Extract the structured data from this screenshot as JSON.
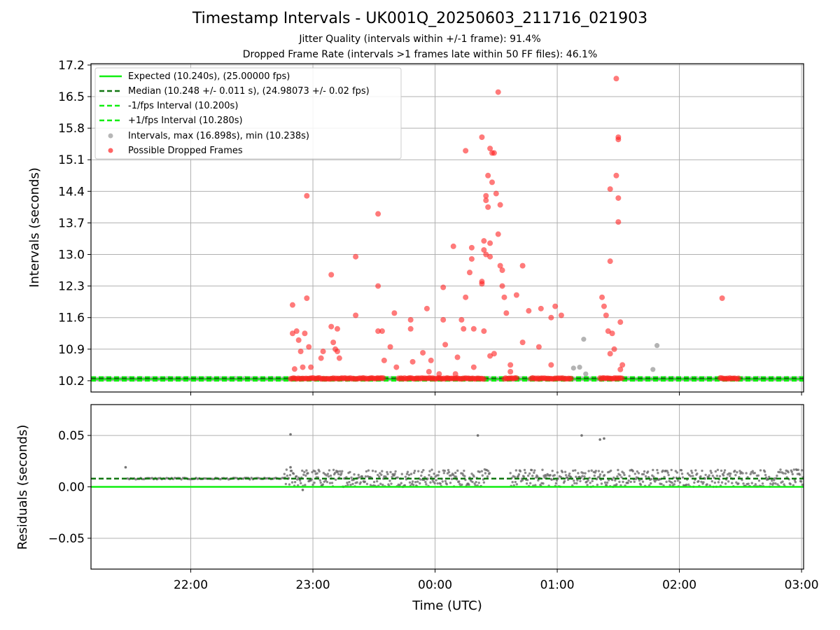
{
  "title": "Timestamp Intervals - UK001Q_20250603_211716_021903",
  "subtitle1": "Jitter Quality (intervals within +/-1 frame): 91.4%",
  "subtitle2": "Dropped Frame Rate (intervals >1 frames late within 50 FF files): 46.1%",
  "colors": {
    "expected": "#11ee11",
    "median": "#117711",
    "intervals": "#999999",
    "dropped": "#ff2222",
    "residual": "#666666"
  },
  "chart_data": [
    {
      "type": "scatter",
      "panel": "intervals",
      "ylabel": "Intervals (seconds)",
      "xlim": [
        "21:11",
        "03:01"
      ],
      "ylim": [
        9.95,
        17.23
      ],
      "y_ticks": [
        "10.2",
        "10.9",
        "11.6",
        "12.3",
        "13.0",
        "13.7",
        "14.4",
        "15.1",
        "15.8",
        "16.5",
        "17.2"
      ],
      "grid": true,
      "legend_position": "upper left",
      "legend": [
        "Expected (10.240s), (25.00000 fps)",
        "Median (10.248 +/- 0.011 s), (24.98073 +/- 0.02 fps)",
        "-1/fps Interval (10.200s)",
        "+1/fps Interval (10.280s)",
        "Intervals, max (16.898s), min (10.238s)",
        "Possible Dropped Frames"
      ],
      "lines": {
        "expected": 10.24,
        "median": 10.248,
        "minus_1_fps": 10.2,
        "plus_1_fps": 10.28
      },
      "intervals_x": [
        "21:11",
        "03:01"
      ],
      "intervals_typical": 10.245,
      "intervals_outliers": [
        {
          "x": "01:08",
          "y": 10.48
        },
        {
          "x": "01:11",
          "y": 10.5
        },
        {
          "x": "01:13",
          "y": 11.12
        },
        {
          "x": "01:14",
          "y": 10.35
        },
        {
          "x": "01:47",
          "y": 10.45
        },
        {
          "x": "01:49",
          "y": 10.98
        }
      ],
      "dropped_baseline": [
        {
          "from": "22:49",
          "to": "23:35",
          "y": 10.25
        },
        {
          "from": "23:42",
          "to": "00:24",
          "y": 10.25
        },
        {
          "from": "00:34",
          "to": "00:40",
          "y": 10.25
        },
        {
          "from": "00:47",
          "to": "01:07",
          "y": 10.25
        },
        {
          "from": "01:21",
          "to": "01:32",
          "y": 10.25
        },
        {
          "from": "02:20",
          "to": "02:29",
          "y": 10.25
        }
      ],
      "dropped_frames": [
        {
          "x": "22:50",
          "y": 11.88
        },
        {
          "x": "22:50",
          "y": 11.25
        },
        {
          "x": "22:51",
          "y": 10.46
        },
        {
          "x": "22:52",
          "y": 11.3
        },
        {
          "x": "22:53",
          "y": 11.1
        },
        {
          "x": "22:54",
          "y": 10.85
        },
        {
          "x": "22:55",
          "y": 10.5
        },
        {
          "x": "22:56",
          "y": 11.25
        },
        {
          "x": "22:57",
          "y": 12.03
        },
        {
          "x": "22:57",
          "y": 14.3
        },
        {
          "x": "22:58",
          "y": 10.95
        },
        {
          "x": "22:59",
          "y": 10.5
        },
        {
          "x": "23:04",
          "y": 10.7
        },
        {
          "x": "23:05",
          "y": 10.85
        },
        {
          "x": "23:09",
          "y": 12.55
        },
        {
          "x": "23:09",
          "y": 11.4
        },
        {
          "x": "23:10",
          "y": 11.05
        },
        {
          "x": "23:11",
          "y": 10.9
        },
        {
          "x": "23:12",
          "y": 10.85
        },
        {
          "x": "23:12",
          "y": 11.35
        },
        {
          "x": "23:13",
          "y": 10.7
        },
        {
          "x": "23:21",
          "y": 12.95
        },
        {
          "x": "23:21",
          "y": 11.65
        },
        {
          "x": "23:32",
          "y": 13.9
        },
        {
          "x": "23:32",
          "y": 12.3
        },
        {
          "x": "23:32",
          "y": 11.3
        },
        {
          "x": "23:34",
          "y": 11.3
        },
        {
          "x": "23:35",
          "y": 10.65
        },
        {
          "x": "23:38",
          "y": 10.95
        },
        {
          "x": "23:40",
          "y": 11.7
        },
        {
          "x": "23:41",
          "y": 10.5
        },
        {
          "x": "23:48",
          "y": 11.55
        },
        {
          "x": "23:48",
          "y": 11.35
        },
        {
          "x": "23:49",
          "y": 10.62
        },
        {
          "x": "23:54",
          "y": 10.82
        },
        {
          "x": "23:56",
          "y": 11.8
        },
        {
          "x": "23:57",
          "y": 10.4
        },
        {
          "x": "23:58",
          "y": 10.65
        },
        {
          "x": "00:02",
          "y": 10.35
        },
        {
          "x": "00:04",
          "y": 12.27
        },
        {
          "x": "00:04",
          "y": 11.55
        },
        {
          "x": "00:05",
          "y": 11.0
        },
        {
          "x": "00:09",
          "y": 13.18
        },
        {
          "x": "00:10",
          "y": 10.35
        },
        {
          "x": "00:11",
          "y": 10.72
        },
        {
          "x": "00:13",
          "y": 11.55
        },
        {
          "x": "00:14",
          "y": 11.35
        },
        {
          "x": "00:15",
          "y": 12.05
        },
        {
          "x": "00:15",
          "y": 15.3
        },
        {
          "x": "00:17",
          "y": 12.6
        },
        {
          "x": "00:18",
          "y": 13.15
        },
        {
          "x": "00:18",
          "y": 12.9
        },
        {
          "x": "00:19",
          "y": 11.35
        },
        {
          "x": "00:19",
          "y": 10.5
        },
        {
          "x": "00:23",
          "y": 15.6
        },
        {
          "x": "00:23",
          "y": 12.4
        },
        {
          "x": "00:23",
          "y": 12.35
        },
        {
          "x": "00:24",
          "y": 13.3
        },
        {
          "x": "00:24",
          "y": 13.1
        },
        {
          "x": "00:25",
          "y": 13.0
        },
        {
          "x": "00:25",
          "y": 14.2
        },
        {
          "x": "00:25",
          "y": 14.3
        },
        {
          "x": "00:26",
          "y": 14.05
        },
        {
          "x": "00:26",
          "y": 14.75
        },
        {
          "x": "00:27",
          "y": 15.35
        },
        {
          "x": "00:27",
          "y": 13.25
        },
        {
          "x": "00:27",
          "y": 12.95
        },
        {
          "x": "00:28",
          "y": 15.25
        },
        {
          "x": "00:28",
          "y": 14.6
        },
        {
          "x": "00:29",
          "y": 15.25
        },
        {
          "x": "00:30",
          "y": 14.35
        },
        {
          "x": "00:32",
          "y": 14.1
        },
        {
          "x": "00:31",
          "y": 13.45
        },
        {
          "x": "00:32",
          "y": 12.75
        },
        {
          "x": "00:33",
          "y": 12.3
        },
        {
          "x": "00:33",
          "y": 12.65
        },
        {
          "x": "00:34",
          "y": 12.05
        },
        {
          "x": "00:35",
          "y": 11.7
        },
        {
          "x": "00:40",
          "y": 12.1
        },
        {
          "x": "00:43",
          "y": 12.75
        },
        {
          "x": "00:43",
          "y": 11.05
        },
        {
          "x": "00:46",
          "y": 11.75
        },
        {
          "x": "00:52",
          "y": 11.8
        },
        {
          "x": "00:57",
          "y": 11.6
        },
        {
          "x": "00:59",
          "y": 11.85
        },
        {
          "x": "01:02",
          "y": 11.65
        },
        {
          "x": "01:22",
          "y": 12.05
        },
        {
          "x": "01:23",
          "y": 11.85
        },
        {
          "x": "01:24",
          "y": 11.65
        },
        {
          "x": "01:25",
          "y": 11.3
        },
        {
          "x": "01:26",
          "y": 14.45
        },
        {
          "x": "01:26",
          "y": 12.85
        },
        {
          "x": "01:27",
          "y": 11.25
        },
        {
          "x": "01:28",
          "y": 10.9
        },
        {
          "x": "01:29",
          "y": 14.75
        },
        {
          "x": "01:29",
          "y": 16.9
        },
        {
          "x": "01:30",
          "y": 15.6
        },
        {
          "x": "01:30",
          "y": 15.55
        },
        {
          "x": "01:30",
          "y": 14.25
        },
        {
          "x": "01:30",
          "y": 13.72
        },
        {
          "x": "01:31",
          "y": 11.5
        },
        {
          "x": "01:31",
          "y": 10.45
        },
        {
          "x": "01:32",
          "y": 10.55
        },
        {
          "x": "02:21",
          "y": 12.03
        },
        {
          "x": "00:31",
          "y": 16.6
        },
        {
          "x": "00:24",
          "y": 11.3
        },
        {
          "x": "00:27",
          "y": 10.75
        },
        {
          "x": "00:29",
          "y": 10.8
        },
        {
          "x": "00:37",
          "y": 10.55
        },
        {
          "x": "00:37",
          "y": 10.4
        },
        {
          "x": "00:51",
          "y": 10.95
        },
        {
          "x": "00:57",
          "y": 10.55
        },
        {
          "x": "01:26",
          "y": 10.8
        }
      ]
    },
    {
      "type": "scatter",
      "panel": "residuals",
      "xlabel": "Time (UTC)",
      "ylabel": "Residuals (seconds)",
      "xlim": [
        "21:11",
        "03:01"
      ],
      "ylim": [
        -0.08,
        0.08
      ],
      "x_ticks": [
        "22:00",
        "23:00",
        "00:00",
        "01:00",
        "02:00",
        "03:00"
      ],
      "y_ticks": [
        "−0.05",
        "0.00",
        "0.05"
      ],
      "grid": true,
      "lines": {
        "zero": 0.0,
        "median": 0.008
      },
      "segments": [
        {
          "from": "21:29",
          "to": "22:46",
          "mode": "flat",
          "y": 0.008
        },
        {
          "from": "22:46",
          "to": "00:27",
          "mode": "band",
          "low": 0.0,
          "high": 0.017
        },
        {
          "from": "00:37",
          "to": "03:01",
          "mode": "band",
          "low": 0.0,
          "high": 0.017
        }
      ],
      "outliers": [
        {
          "x": "21:28",
          "y": 0.019
        },
        {
          "x": "22:49",
          "y": 0.051
        },
        {
          "x": "22:49",
          "y": 0.019
        },
        {
          "x": "22:55",
          "y": -0.003
        },
        {
          "x": "00:21",
          "y": 0.05
        },
        {
          "x": "01:12",
          "y": 0.05
        },
        {
          "x": "01:21",
          "y": 0.046
        },
        {
          "x": "01:23",
          "y": 0.047
        }
      ]
    }
  ]
}
